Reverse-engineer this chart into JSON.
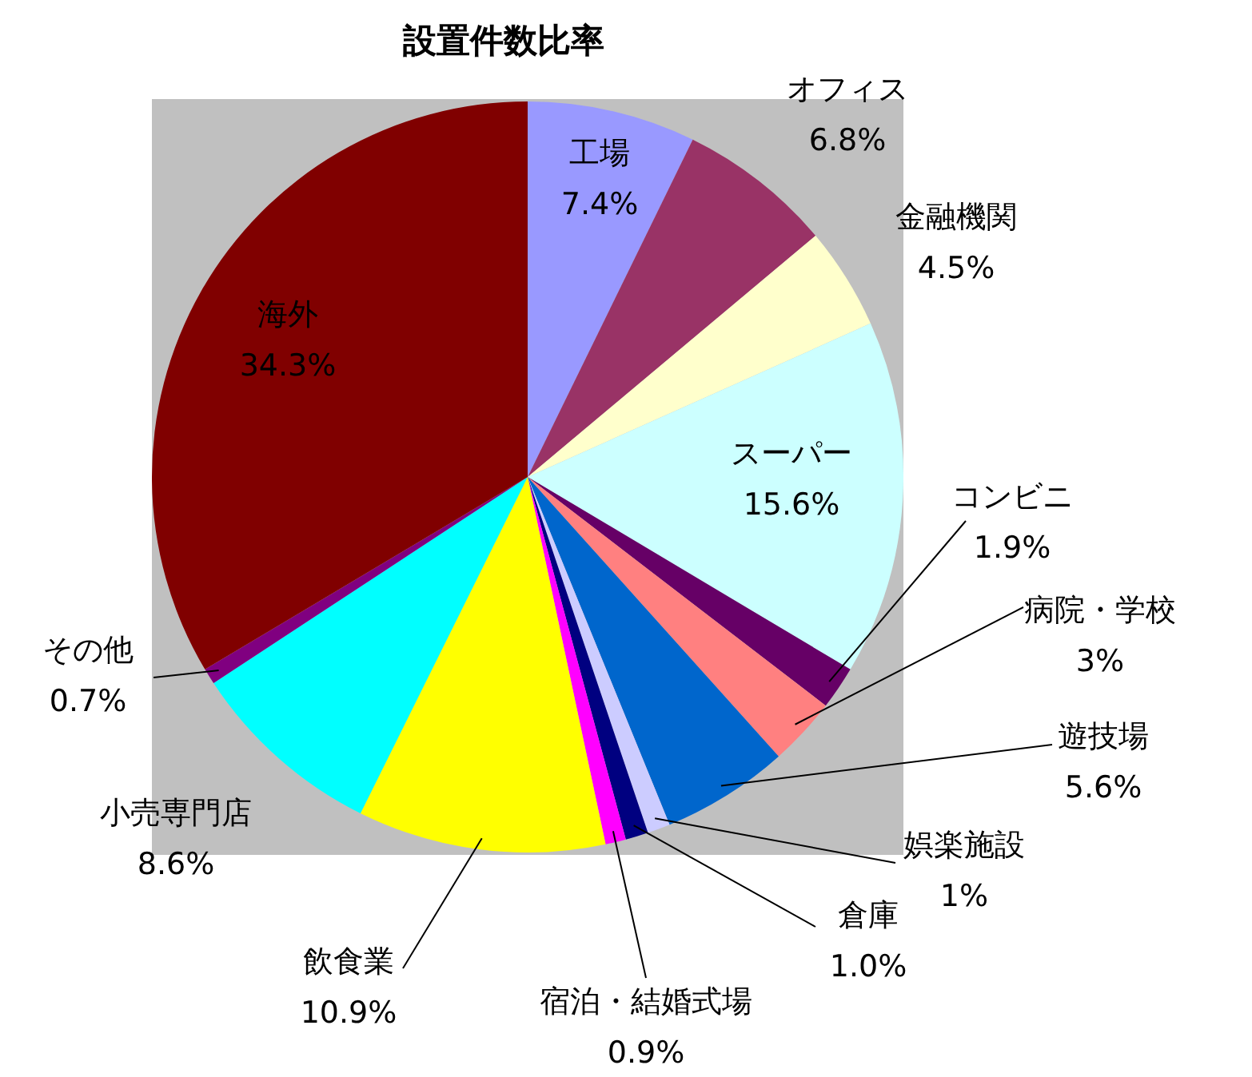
{
  "chart_data": {
    "type": "pie",
    "title": "設置件数比率",
    "categories": [
      "工場",
      "オフィス",
      "金融機関",
      "スーパー",
      "コンビニ",
      "病院・学校",
      "遊技場",
      "娯楽施設",
      "倉庫",
      "宿泊・結婚式場",
      "飲食業",
      "小売専門店",
      "その他",
      "海外"
    ],
    "values": [
      7.4,
      6.8,
      4.5,
      15.6,
      1.9,
      3,
      5.6,
      1,
      1.0,
      0.9,
      10.9,
      8.6,
      0.7,
      34.3
    ],
    "value_labels": [
      "7.4%",
      "6.8%",
      "4.5%",
      "15.6%",
      "1.9%",
      "3%",
      "5.6%",
      "1%",
      "1.0%",
      "0.9%",
      "10.9%",
      "8.6%",
      "0.7%",
      "34.3%"
    ],
    "colors": [
      "#9999ff",
      "#993366",
      "#ffffcc",
      "#ccffff",
      "#660066",
      "#ff8080",
      "#0066cc",
      "#ccccff",
      "#000080",
      "#ff00ff",
      "#ffff00",
      "#00ffff",
      "#800080",
      "#800000"
    ]
  }
}
